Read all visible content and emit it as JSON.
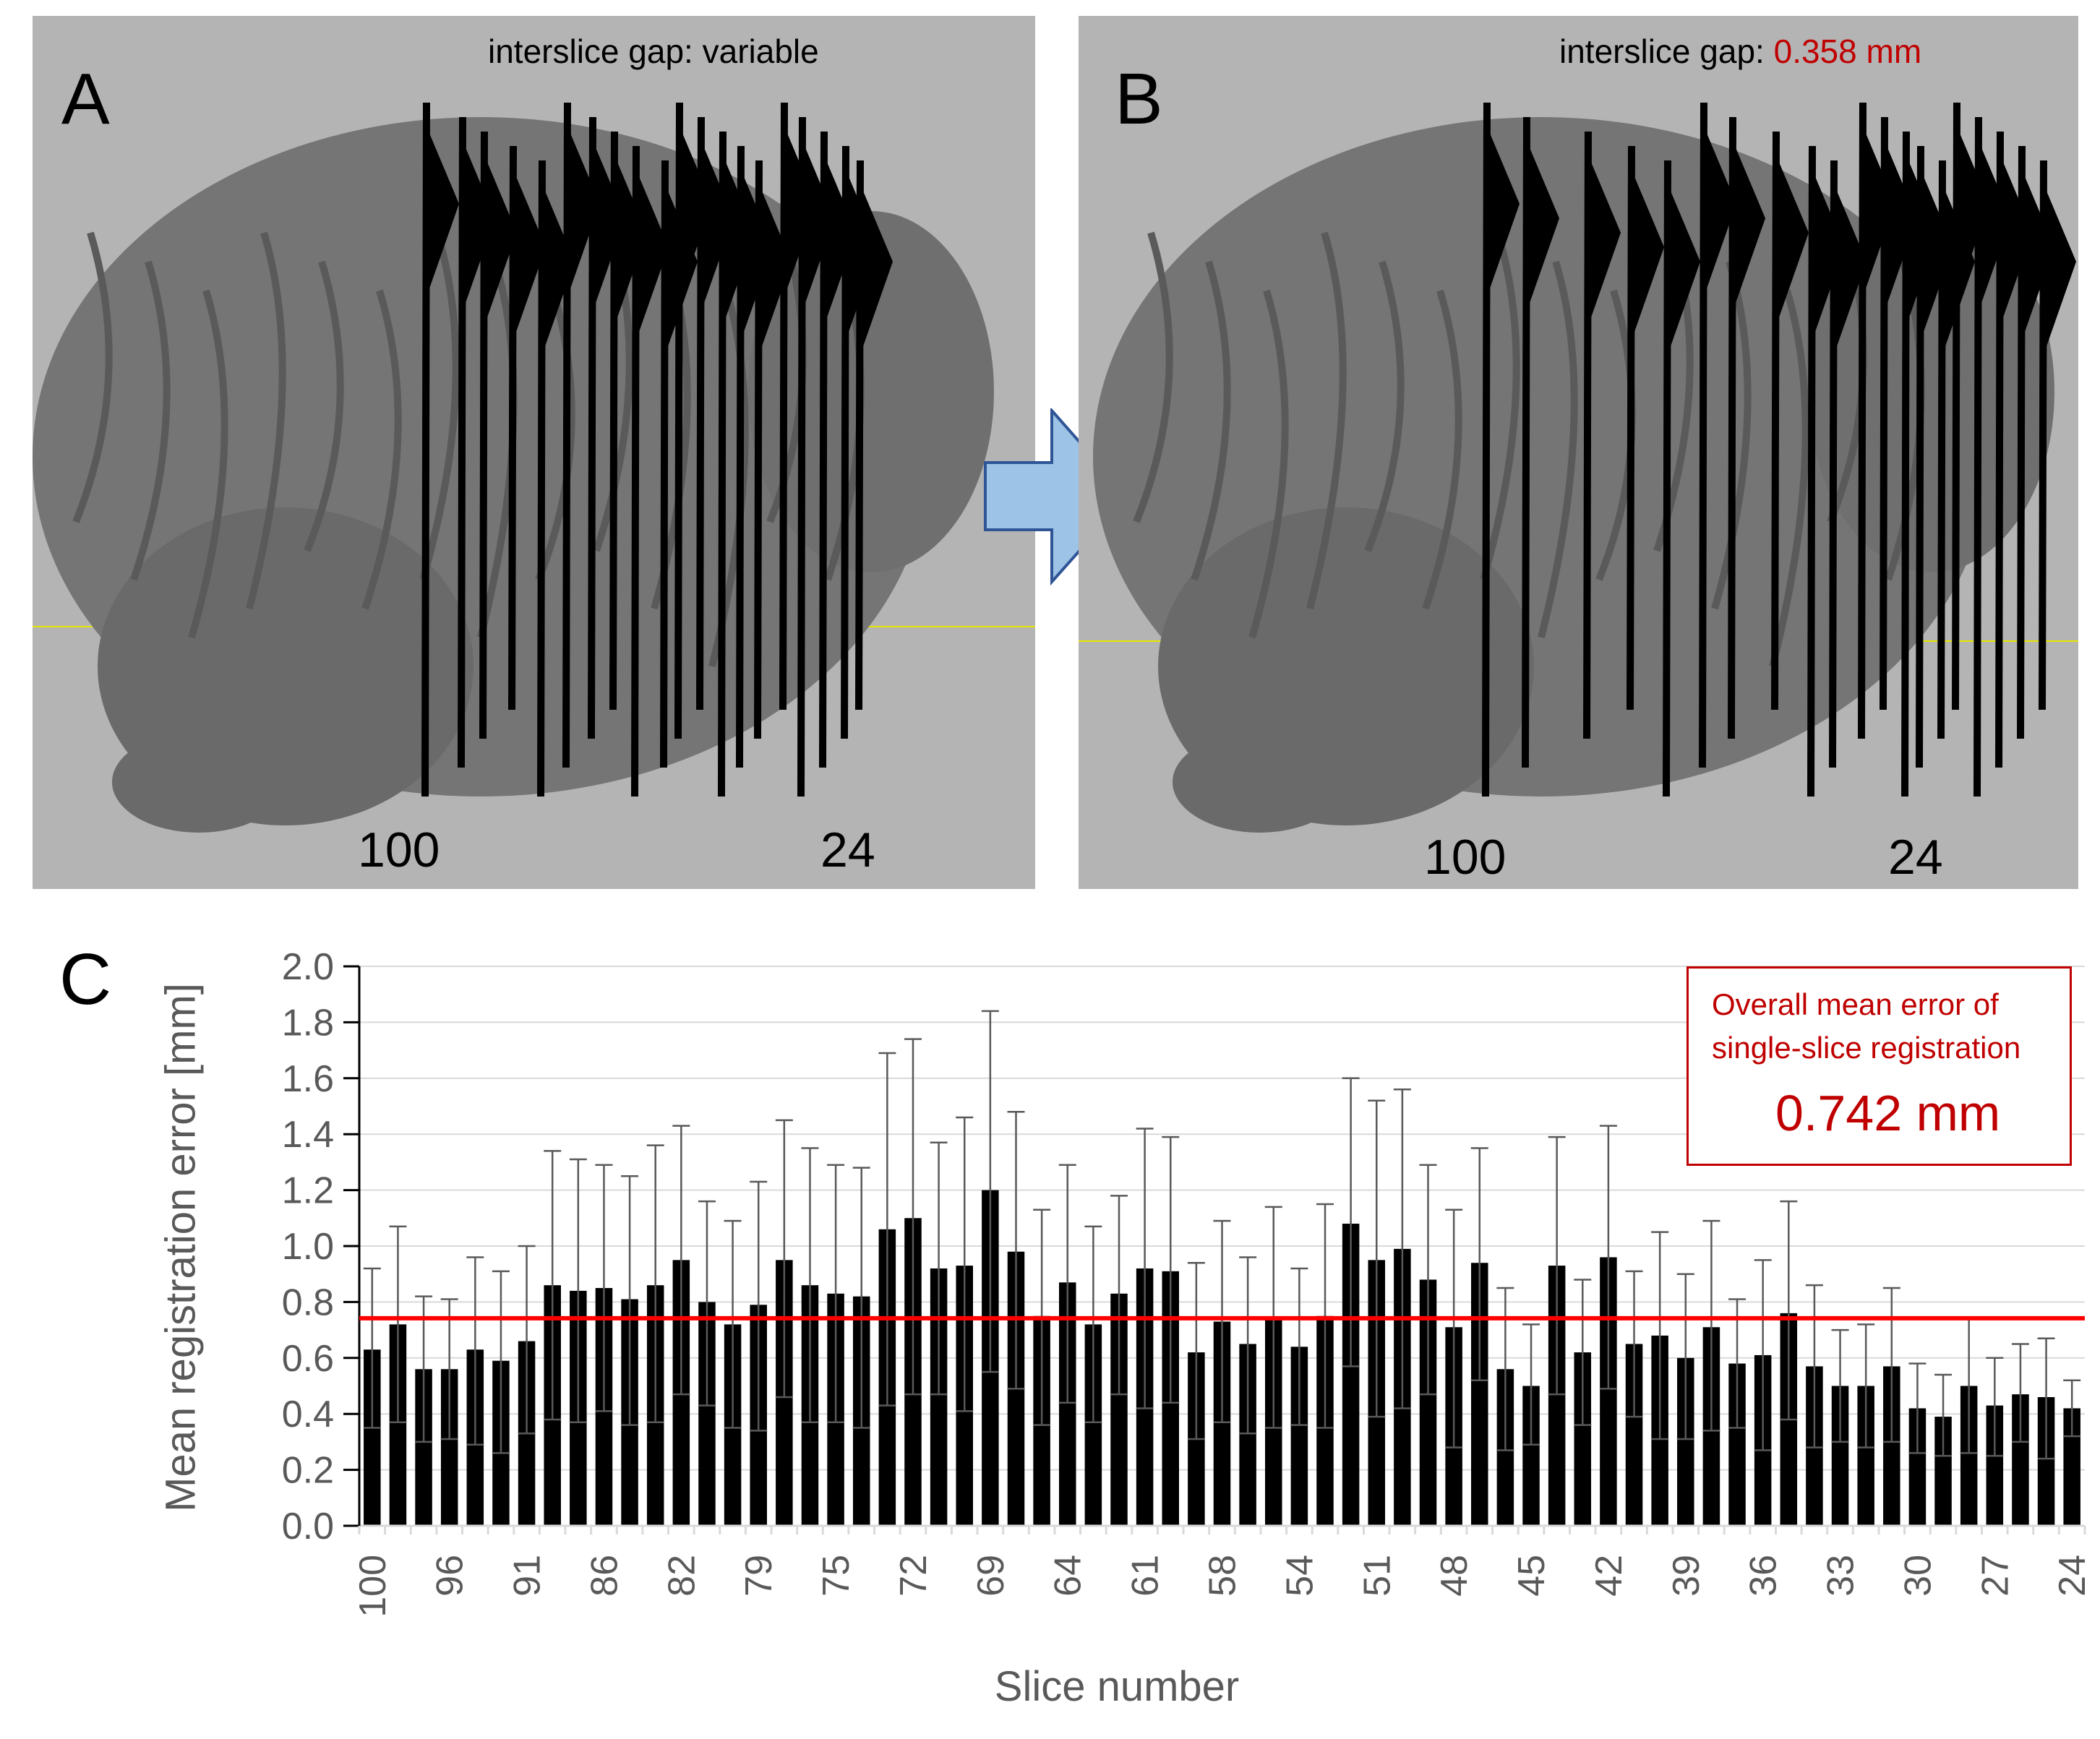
{
  "panels": {
    "a": {
      "letter": "A",
      "gap_label": "interslice gap: ",
      "gap_value": "variable",
      "slice_start": "100",
      "slice_end": "24"
    },
    "b": {
      "letter": "B",
      "gap_label": "interslice gap: ",
      "gap_value": "0.358 mm",
      "slice_start": "100",
      "slice_end": "24"
    },
    "c": {
      "letter": "C"
    }
  },
  "colors": {
    "background": "#b4b4b4",
    "brain": "#7a7a7a",
    "bar": "#000000",
    "mean_line": "#ff0000",
    "annotation": "#c00000",
    "arrow_fill": "#9dc3e6",
    "arrow_stroke": "#2f5597"
  },
  "legend": {
    "line1": "Overall mean error of",
    "line2": "single-slice registration",
    "value": "0.742 mm"
  },
  "chart_data": {
    "type": "bar",
    "title": "",
    "xlabel": "Slice number",
    "ylabel": "Mean registration error [mm]",
    "ylim": [
      0,
      2.0
    ],
    "yticks": [
      "0.0",
      "0.2",
      "0.4",
      "0.6",
      "0.8",
      "1.0",
      "1.2",
      "1.4",
      "1.6",
      "1.8",
      "2.0"
    ],
    "grid": true,
    "mean_line": 0.742,
    "tick_labels": [
      "100",
      "96",
      "91",
      "86",
      "82",
      "79",
      "75",
      "72",
      "69",
      "64",
      "61",
      "58",
      "54",
      "51",
      "48",
      "45",
      "42",
      "39",
      "36",
      "33",
      "30",
      "27",
      "24"
    ],
    "tick_label_every": 3,
    "values": [
      0.63,
      0.72,
      0.56,
      0.56,
      0.63,
      0.59,
      0.66,
      0.86,
      0.84,
      0.85,
      0.81,
      0.86,
      0.95,
      0.8,
      0.72,
      0.79,
      0.95,
      0.86,
      0.83,
      0.82,
      1.06,
      1.1,
      0.92,
      0.93,
      1.2,
      0.98,
      0.75,
      0.87,
      0.72,
      0.83,
      0.92,
      0.91,
      0.62,
      0.73,
      0.65,
      0.74,
      0.64,
      0.75,
      1.08,
      0.95,
      0.99,
      0.88,
      0.71,
      0.94,
      0.56,
      0.5,
      0.93,
      0.62,
      0.96,
      0.65,
      0.68,
      0.6,
      0.71,
      0.58,
      0.61,
      0.76,
      0.57,
      0.5,
      0.5,
      0.57,
      0.42,
      0.39,
      0.5,
      0.43,
      0.47,
      0.46,
      0.42
    ],
    "error_high": [
      0.92,
      1.07,
      0.82,
      0.81,
      0.96,
      0.91,
      1.0,
      1.34,
      1.31,
      1.29,
      1.25,
      1.36,
      1.43,
      1.16,
      1.09,
      1.23,
      1.45,
      1.35,
      1.29,
      1.28,
      1.69,
      1.74,
      1.37,
      1.46,
      1.84,
      1.48,
      1.13,
      1.29,
      1.07,
      1.18,
      1.42,
      1.39,
      0.94,
      1.09,
      0.96,
      1.14,
      0.92,
      1.15,
      1.6,
      1.52,
      1.56,
      1.29,
      1.13,
      1.35,
      0.85,
      0.72,
      1.39,
      0.88,
      1.43,
      0.91,
      1.05,
      0.9,
      1.09,
      0.81,
      0.95,
      1.16,
      0.86,
      0.7,
      0.72,
      0.85,
      0.58,
      0.54,
      0.74,
      0.6,
      0.65,
      0.67,
      0.52
    ],
    "error_low": [
      0.35,
      0.37,
      0.3,
      0.31,
      0.29,
      0.26,
      0.33,
      0.38,
      0.37,
      0.41,
      0.36,
      0.37,
      0.47,
      0.43,
      0.35,
      0.34,
      0.46,
      0.37,
      0.37,
      0.35,
      0.43,
      0.47,
      0.47,
      0.41,
      0.55,
      0.49,
      0.36,
      0.44,
      0.37,
      0.47,
      0.42,
      0.44,
      0.31,
      0.37,
      0.33,
      0.35,
      0.36,
      0.35,
      0.57,
      0.39,
      0.42,
      0.47,
      0.28,
      0.52,
      0.27,
      0.29,
      0.47,
      0.36,
      0.49,
      0.39,
      0.31,
      0.31,
      0.34,
      0.35,
      0.27,
      0.38,
      0.28,
      0.3,
      0.28,
      0.3,
      0.26,
      0.25,
      0.26,
      0.25,
      0.3,
      0.24,
      0.32
    ]
  }
}
